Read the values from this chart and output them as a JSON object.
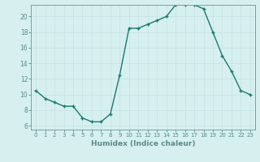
{
  "x": [
    0,
    1,
    2,
    3,
    4,
    5,
    6,
    7,
    8,
    9,
    10,
    11,
    12,
    13,
    14,
    15,
    16,
    17,
    18,
    19,
    20,
    21,
    22,
    23
  ],
  "y": [
    10.5,
    9.5,
    9.0,
    8.5,
    8.5,
    7.0,
    6.5,
    6.5,
    7.5,
    12.5,
    18.5,
    18.5,
    19.0,
    19.5,
    20.0,
    21.5,
    21.5,
    21.5,
    21.0,
    18.0,
    15.0,
    13.0,
    10.5,
    10.0
  ],
  "xlabel": "Humidex (Indice chaleur)",
  "ylabel": "",
  "title": "",
  "xlim": [
    -0.5,
    23.5
  ],
  "ylim": [
    5.5,
    21.5
  ],
  "yticks": [
    6,
    8,
    10,
    12,
    14,
    16,
    18,
    20
  ],
  "xticks": [
    0,
    1,
    2,
    3,
    4,
    5,
    6,
    7,
    8,
    9,
    10,
    11,
    12,
    13,
    14,
    15,
    16,
    17,
    18,
    19,
    20,
    21,
    22,
    23
  ],
  "line_color": "#1a7a6e",
  "marker_color": "#1a7a6e",
  "bg_color": "#d6f0ef",
  "grid_color": "#c8e4e4",
  "axis_color": "#5a8a8a",
  "spine_color": "#7aA0A0"
}
